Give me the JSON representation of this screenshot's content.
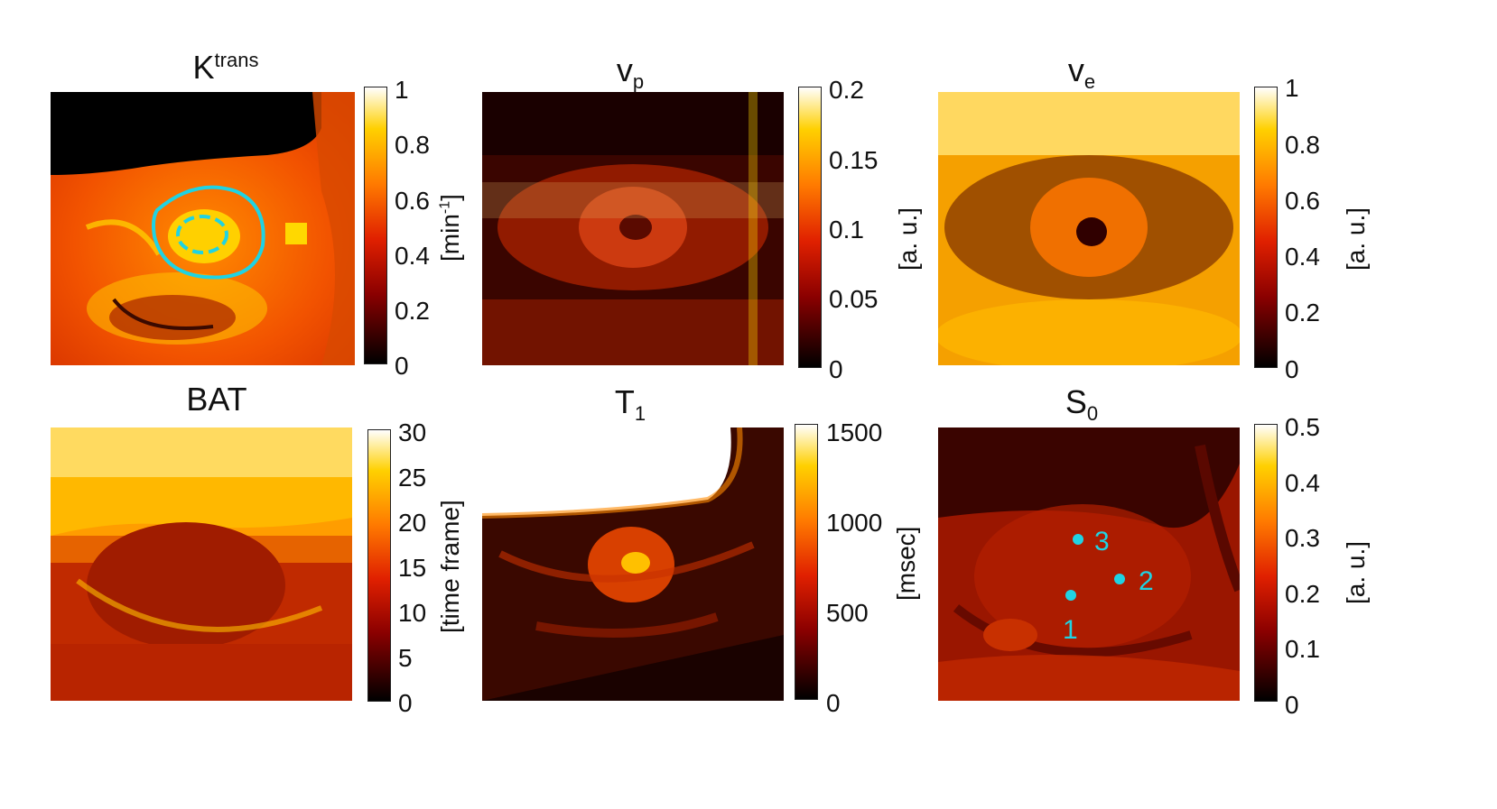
{
  "figure": {
    "panels": [
      {
        "id": "ktrans",
        "title_main": "K",
        "title_sup": "trans",
        "title_sub": "",
        "unit": "[min",
        "unit_sup": "-1",
        "unit_tail": "]",
        "ticks": [
          "1",
          "0.8",
          "0.6",
          "0.4",
          "0.2",
          "0"
        ]
      },
      {
        "id": "vp",
        "title_main": "v",
        "title_sup": "",
        "title_sub": "p",
        "unit": "[a. u.]",
        "unit_sup": "",
        "unit_tail": "",
        "ticks": [
          "0.2",
          "0.15",
          "0.1",
          "0.05",
          "0"
        ]
      },
      {
        "id": "ve",
        "title_main": "v",
        "title_sup": "",
        "title_sub": "e",
        "unit": "[a. u.]",
        "unit_sup": "",
        "unit_tail": "",
        "ticks": [
          "1",
          "0.8",
          "0.6",
          "0.4",
          "0.2",
          "0"
        ]
      },
      {
        "id": "bat",
        "title_main": "BAT",
        "title_sup": "",
        "title_sub": "",
        "unit": "[time frame]",
        "unit_sup": "",
        "unit_tail": "",
        "ticks": [
          "30",
          "25",
          "20",
          "15",
          "10",
          "5",
          "0"
        ]
      },
      {
        "id": "t1",
        "title_main": "T",
        "title_sup": "",
        "title_sub": "1",
        "unit": "[msec]",
        "unit_sup": "",
        "unit_tail": "",
        "ticks": [
          "1500",
          "1000",
          "500",
          "0"
        ]
      },
      {
        "id": "s0",
        "title_main": "S",
        "title_sup": "",
        "title_sub": "0",
        "unit": "[a. u.]",
        "unit_sup": "",
        "unit_tail": "",
        "ticks": [
          "0.5",
          "0.4",
          "0.3",
          "0.2",
          "0.1",
          "0"
        ]
      }
    ],
    "s0_markers": [
      "1",
      "2",
      "3"
    ],
    "colors": {
      "roi": "#1fd3e3",
      "dark": "#000000",
      "red": "#c41a00",
      "orange": "#ff7a00",
      "yellow": "#ffd800",
      "white": "#ffffff"
    }
  }
}
